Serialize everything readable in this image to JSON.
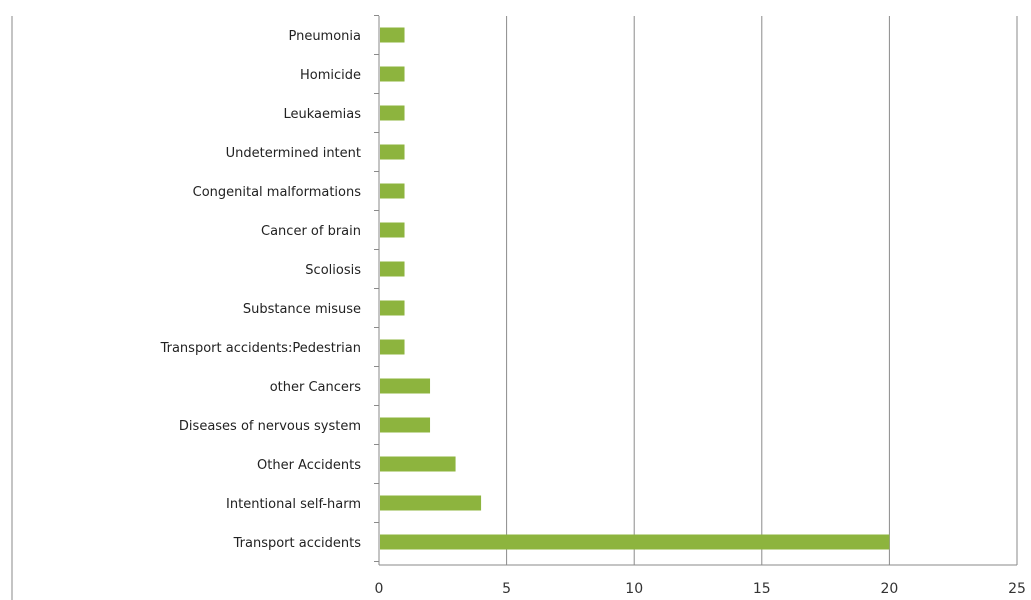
{
  "colors": {
    "bar": "#8db43e",
    "grid": "#8a8a8a",
    "axis": "#8a8a8a",
    "title": "#6cb33f"
  },
  "chart_data": {
    "type": "bar",
    "orientation": "horizontal",
    "title": "",
    "xlabel": "",
    "ylabel": "",
    "categories": [
      "Pneumonia",
      "Homicide",
      "Leukaemias",
      "Undetermined intent",
      "Congenital malformations",
      "Cancer of brain",
      "Scoliosis",
      "Substance misuse",
      "Transport accidents:Pedestrian",
      "other Cancers",
      "Diseases of nervous system",
      "Other Accidents",
      "Intentional self-harm",
      "Transport accidents"
    ],
    "values": [
      1,
      1,
      1,
      1,
      1,
      1,
      1,
      1,
      1,
      2,
      2,
      3,
      4,
      20
    ],
    "xlim": [
      0,
      25
    ],
    "xticks": [
      "0",
      "5",
      "10",
      "15",
      "20",
      "25"
    ],
    "grid": "vertical",
    "legend": "none"
  }
}
